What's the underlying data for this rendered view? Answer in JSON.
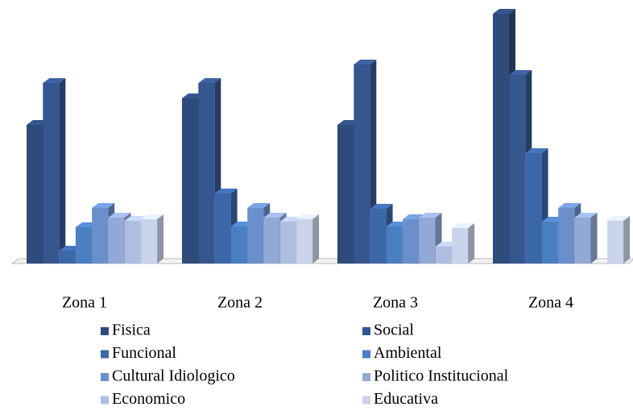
{
  "chart_data": {
    "type": "bar3d",
    "categories": [
      "Zona 1",
      "Zona 2",
      "Zona 3",
      "Zona 4"
    ],
    "series": [
      {
        "name": "Fisica",
        "color": "#2f4b7c",
        "values": [
          172,
          205,
          172,
          310
        ]
      },
      {
        "name": "Social",
        "color": "#36568f",
        "values": [
          224,
          224,
          247,
          234
        ]
      },
      {
        "name": "Funcional",
        "color": "#3c67a8",
        "values": [
          16,
          87,
          68,
          137
        ]
      },
      {
        "name": "Ambiental",
        "color": "#4a7fc1",
        "values": [
          45,
          46,
          46,
          52
        ]
      },
      {
        "name": "Cultural Idiologico",
        "color": "#6b8fca",
        "values": [
          69,
          69,
          55,
          69
        ]
      },
      {
        "name": "Politico Institucional",
        "color": "#93a9d5",
        "values": [
          57,
          57,
          57,
          57
        ]
      },
      {
        "name": "Economico",
        "color": "#aebee1",
        "values": [
          53,
          52,
          21,
          null
        ]
      },
      {
        "name": "Educativa",
        "color": "#c9d3ea",
        "values": [
          55,
          55,
          44,
          53
        ]
      }
    ],
    "legend": "bottom"
  }
}
